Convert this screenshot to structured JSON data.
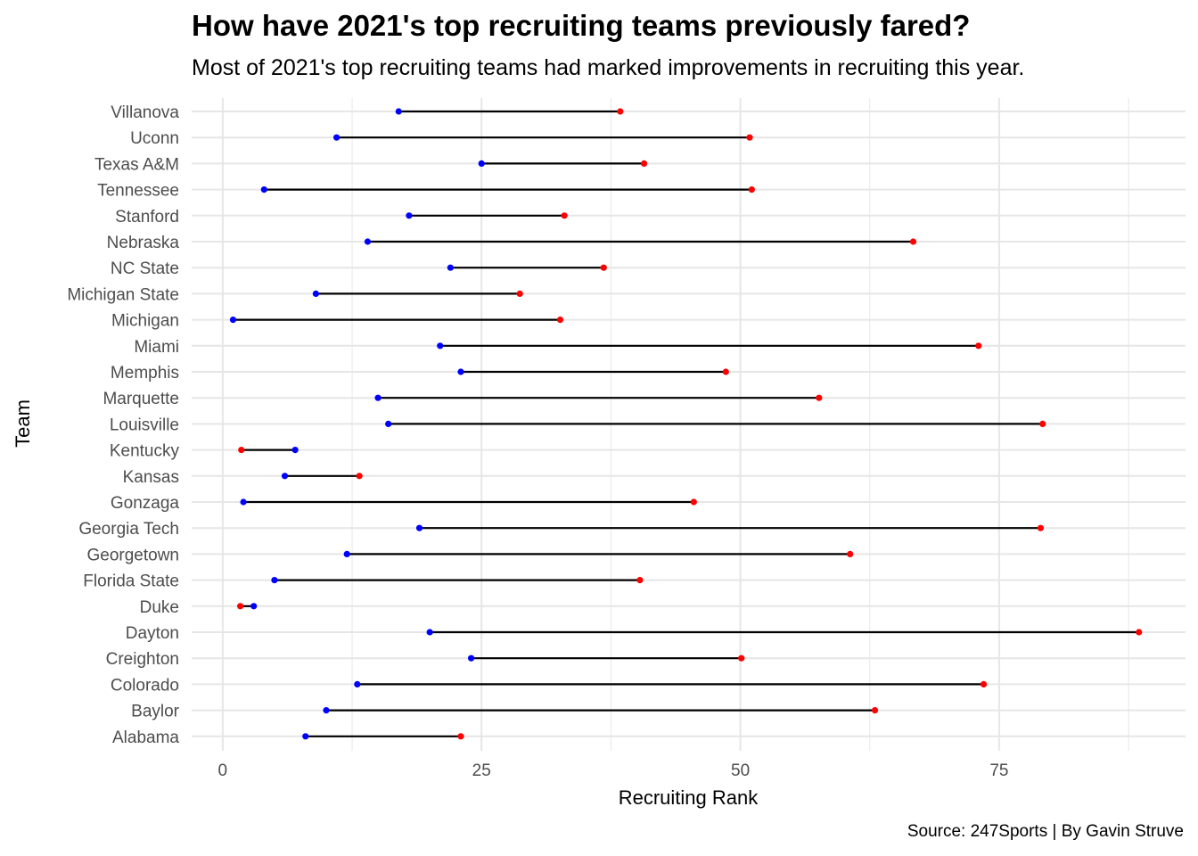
{
  "chart_data": {
    "type": "dumbbell",
    "title": "How have 2021's top recruiting teams previously fared?",
    "subtitle": "Most of 2021's top recruiting teams had marked improvements in recruiting this year.",
    "caption": "Source: 247Sports | By Gavin Struve",
    "xlabel": "Recruiting Rank",
    "ylabel": "Team",
    "xlim": [
      -3,
      93
    ],
    "x_ticks": [
      0,
      25,
      50,
      75
    ],
    "grid": true,
    "colors": {
      "rank_2021": "#0000ff",
      "rank_previous": "#ff0000",
      "segment": "#000000"
    },
    "teams": [
      "Villanova",
      "Uconn",
      "Texas A&M",
      "Tennessee",
      "Stanford",
      "Nebraska",
      "NC State",
      "Michigan State",
      "Michigan",
      "Miami",
      "Memphis",
      "Marquette",
      "Louisville",
      "Kentucky",
      "Kansas",
      "Gonzaga",
      "Georgia Tech",
      "Georgetown",
      "Florida State",
      "Duke",
      "Dayton",
      "Creighton",
      "Colorado",
      "Baylor",
      "Alabama"
    ],
    "series": [
      {
        "values": [
          17,
          11,
          25,
          4,
          18,
          14,
          22,
          9,
          1,
          21,
          23,
          15,
          16,
          7,
          6,
          2,
          19,
          12,
          5,
          3,
          20,
          24,
          13,
          10,
          8
        ]
      },
      {
        "values": [
          38.4,
          50.9,
          40.7,
          51.1,
          33.0,
          66.7,
          36.8,
          28.7,
          32.6,
          73.0,
          48.6,
          57.6,
          79.2,
          1.8,
          13.2,
          45.5,
          79.0,
          60.6,
          40.3,
          1.7,
          88.5,
          50.1,
          73.5,
          63.0,
          23.0
        ]
      }
    ]
  }
}
